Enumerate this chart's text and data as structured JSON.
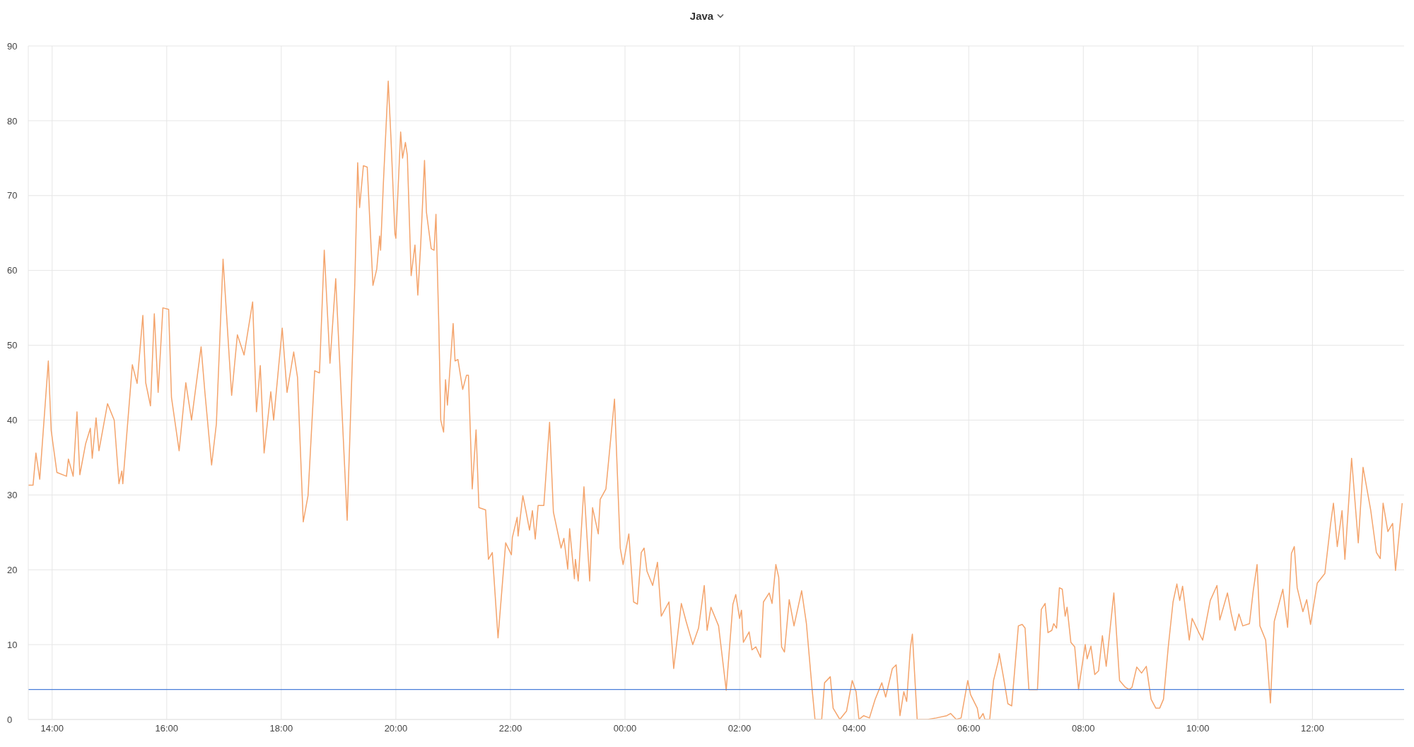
{
  "chart_data": {
    "type": "line",
    "title": "Java",
    "x": [
      "--01-01T13:35",
      "--01-01T13:40",
      "--01-01T13:43",
      "--01-01T13:47",
      "--01-01T13:56",
      "--01-01T13:59",
      "--01-01T14:05",
      "--01-01T14:15",
      "--01-01T14:17",
      "--01-01T14:22",
      "--01-01T14:26",
      "--01-01T14:29",
      "--01-01T14:35",
      "--01-01T14:40",
      "--01-01T14:42",
      "--01-01T14:46",
      "--01-01T14:49",
      "--01-01T14:58",
      "--01-01T15:05",
      "--01-01T15:10",
      "--01-01T15:13",
      "--01-01T15:14",
      "--01-01T15:24",
      "--01-01T15:29",
      "--01-01T15:35",
      "--01-01T15:38",
      "--01-01T15:43",
      "--01-01T15:47",
      "--01-01T15:51",
      "--01-01T15:56",
      "--01-01T16:02",
      "--01-01T16:05",
      "--01-01T16:13",
      "--01-01T16:20",
      "--01-01T16:26",
      "--01-01T16:36",
      "--01-01T16:40",
      "--01-01T16:47",
      "--01-01T16:52",
      "--01-01T16:59",
      "--01-01T17:08",
      "--01-01T17:14",
      "--01-01T17:21",
      "--01-01T17:30",
      "--01-01T17:34",
      "--01-01T17:38",
      "--01-01T17:42",
      "--01-01T17:49",
      "--01-01T17:52",
      "--01-01T18:01",
      "--01-01T18:06",
      "--01-01T18:13",
      "--01-01T18:17",
      "--01-01T18:23",
      "--01-01T18:28",
      "--01-01T18:35",
      "--01-01T18:40",
      "--01-01T18:45",
      "--01-01T18:51",
      "--01-01T18:57",
      "--01-01T19:09",
      "--01-01T19:17",
      "--01-01T19:20",
      "--01-01T19:22",
      "--01-01T19:26",
      "--01-01T19:30",
      "--01-01T19:36",
      "--01-01T19:40",
      "--01-01T19:43",
      "--01-01T19:44",
      "--01-01T19:47",
      "--01-01T19:52",
      "--01-01T19:55",
      "--01-01T19:59",
      "--01-01T20:00",
      "--01-01T20:05",
      "--01-01T20:07",
      "--01-01T20:10",
      "--01-01T20:12",
      "--01-01T20:16",
      "--01-01T20:20",
      "--01-01T20:23",
      "--01-01T20:26",
      "--01-01T20:30",
      "--01-01T20:32",
      "--01-01T20:37",
      "--01-01T20:40",
      "--01-01T20:42",
      "--01-01T20:45",
      "--01-01T20:47",
      "--01-01T20:50",
      "--01-01T20:52",
      "--01-01T20:54",
      "--01-01T21:00",
      "--01-01T21:02",
      "--01-01T21:05",
      "--01-01T21:10",
      "--01-01T21:14",
      "--01-01T21:16",
      "--01-01T21:20",
      "--01-01T21:24",
      "--01-01T21:27",
      "--01-01T21:34",
      "--01-01T21:37",
      "--01-01T21:41",
      "--01-01T21:47",
      "--01-01T21:55",
      "--01-01T22:01",
      "--01-01T22:02",
      "--01-01T22:07",
      "--01-01T22:08",
      "--01-01T22:13",
      "--01-01T22:16",
      "--01-01T22:20",
      "--01-01T22:23",
      "--01-01T22:26",
      "--01-01T22:29",
      "--01-01T22:35",
      "--01-01T22:41",
      "--01-01T22:45",
      "--01-01T22:53",
      "--01-01T22:56",
      "--01-01T23:00",
      "--01-01T23:02",
      "--01-01T23:07",
      "--01-01T23:08",
      "--01-01T23:11",
      "--01-01T23:17",
      "--01-01T23:23",
      "--01-01T23:26",
      "--01-01T23:32",
      "--01-01T23:34",
      "--01-01T23:40",
      "--01-01T23:49",
      "--01-01T23:55",
      "--01-01T23:58",
      "--01-02T00:04",
      "--01-02T00:09",
      "--01-02T00:13",
      "--01-02T00:17",
      "--01-02T00:20",
      "--01-02T00:23",
      "--01-02T00:29",
      "--01-02T00:34",
      "--01-02T00:38",
      "--01-02T00:46",
      "--01-02T00:51",
      "--01-02T00:59",
      "--01-02T01:04",
      "--01-02T01:11",
      "--01-02T01:17",
      "--01-02T01:23",
      "--01-02T01:26",
      "--01-02T01:30",
      "--01-02T01:38",
      "--01-02T01:46",
      "--01-02T01:53",
      "--01-02T01:56",
      "--01-02T02:00",
      "--01-02T02:02",
      "--01-02T02:04",
      "--01-02T02:10",
      "--01-02T02:13",
      "--01-02T02:17",
      "--01-02T02:22",
      "--01-02T02:25",
      "--01-02T02:31",
      "--01-02T02:34",
      "--01-02T02:38",
      "--01-02T02:41",
      "--01-02T02:44",
      "--01-02T02:47",
      "--01-02T02:52",
      "--01-02T02:57",
      "--01-02T03:05",
      "--01-02T03:10",
      "--01-02T03:16",
      "--01-02T03:19",
      "--01-02T03:26",
      "--01-02T03:29",
      "--01-02T03:35",
      "--01-02T03:38",
      "--01-02T03:45",
      "--01-02T03:50",
      "--01-02T03:52",
      "--01-02T03:58",
      "--01-02T04:02",
      "--01-02T04:05",
      "--01-02T04:10",
      "--01-02T04:16",
      "--01-02T04:22",
      "--01-02T04:29",
      "--01-02T04:33",
      "--01-02T04:40",
      "--01-02T04:44",
      "--01-02T04:48",
      "--01-02T04:52",
      "--01-02T04:55",
      "--01-02T04:59",
      "--01-02T05:01",
      "--01-02T05:06",
      "--01-02T05:17",
      "--01-02T05:26",
      "--01-02T05:37",
      "--01-02T05:41",
      "--01-02T05:47",
      "--01-02T05:52",
      "--01-02T05:59",
      "--01-02T06:02",
      "--01-02T06:09",
      "--01-02T06:11",
      "--01-02T06:15",
      "--01-02T06:17",
      "--01-02T06:22",
      "--01-02T06:26",
      "--01-02T06:31",
      "--01-02T06:32",
      "--01-02T06:37",
      "--01-02T06:41",
      "--01-02T06:45",
      "--01-02T06:52",
      "--01-02T06:56",
      "--01-02T06:59",
      "--01-02T07:03",
      "--01-02T07:12",
      "--01-02T07:16",
      "--01-02T07:20",
      "--01-02T07:23",
      "--01-02T07:27",
      "--01-02T07:29",
      "--01-02T07:32",
      "--01-02T07:35",
      "--01-02T07:38",
      "--01-02T07:41",
      "--01-02T07:43",
      "--01-02T07:47",
      "--01-02T07:51",
      "--01-02T07:55",
      "--01-02T08:02",
      "--01-02T08:04",
      "--01-02T08:08",
      "--01-02T08:12",
      "--01-02T08:16",
      "--01-02T08:20",
      "--01-02T08:24",
      "--01-02T08:32",
      "--01-02T08:38",
      "--01-02T08:44",
      "--01-02T08:48",
      "--01-02T08:51",
      "--01-02T08:56",
      "--01-02T09:01",
      "--01-02T09:06",
      "--01-02T09:11",
      "--01-02T09:16",
      "--01-02T09:20",
      "--01-02T09:24",
      "--01-02T09:29",
      "--01-02T09:34",
      "--01-02T09:38",
      "--01-02T09:41",
      "--01-02T09:44",
      "--01-02T09:51",
      "--01-02T09:54",
      "--01-02T10:01",
      "--01-02T10:05",
      "--01-02T10:13",
      "--01-02T10:20",
      "--01-02T10:23",
      "--01-02T10:31",
      "--01-02T10:35",
      "--01-02T10:39",
      "--01-02T10:43",
      "--01-02T10:47",
      "--01-02T10:54",
      "--01-02T10:58",
      "--01-02T11:02",
      "--01-02T11:05",
      "--01-02T11:11",
      "--01-02T11:16",
      "--01-02T11:20",
      "--01-02T11:29",
      "--01-02T11:34",
      "--01-02T11:38",
      "--01-02T11:41",
      "--01-02T11:44",
      "--01-02T11:50",
      "--01-02T11:54",
      "--01-02T11:58",
      "--01-02T12:05",
      "--01-02T12:13",
      "--01-02T12:19",
      "--01-02T12:22",
      "--01-02T12:26",
      "--01-02T12:31",
      "--01-02T12:34",
      "--01-02T12:41",
      "--01-02T12:48",
      "--01-02T12:53",
      "--01-02T13:01",
      "--01-02T13:07",
      "--01-02T13:11",
      "--01-02T13:14",
      "--01-02T13:19",
      "--01-02T13:24",
      "--01-02T13:27",
      "--01-02T13:34"
    ],
    "series": [
      {
        "color": "#f4a46c",
        "values": [
          31.3,
          31.3,
          35.6,
          32.1,
          47.9,
          38.6,
          33.0,
          32.5,
          34.8,
          32.5,
          41.1,
          32.7,
          36.8,
          38.9,
          34.9,
          40.3,
          35.9,
          42.2,
          40.0,
          31.5,
          33.2,
          31.5,
          47.4,
          44.9,
          54.0,
          45.0,
          41.9,
          54.2,
          43.7,
          55.0,
          54.8,
          43.0,
          35.9,
          45.0,
          40.0,
          49.8,
          43.7,
          34.0,
          39.5,
          61.5,
          43.3,
          51.4,
          48.7,
          55.8,
          41.1,
          47.3,
          35.6,
          43.8,
          40.0,
          52.3,
          43.7,
          49.1,
          45.7,
          26.4,
          29.9,
          46.6,
          46.3,
          62.7,
          47.6,
          58.9,
          26.6,
          58.3,
          74.4,
          68.4,
          74.0,
          73.8,
          58.0,
          60.2,
          64.6,
          62.7,
          71.9,
          85.3,
          77.3,
          64.9,
          64.3,
          78.5,
          75.0,
          77.1,
          75.4,
          59.3,
          63.4,
          56.7,
          63.4,
          74.7,
          67.8,
          62.9,
          62.7,
          67.5,
          52.6,
          40.0,
          38.4,
          45.4,
          42.0,
          52.9,
          47.9,
          48.1,
          44.1,
          46.0,
          46.0,
          30.8,
          38.7,
          28.3,
          28.0,
          21.4,
          22.3,
          10.9,
          23.6,
          22.0,
          24.3,
          27.0,
          24.5,
          29.9,
          28.0,
          25.3,
          27.9,
          24.1,
          28.6,
          28.6,
          39.7,
          27.7,
          22.9,
          24.2,
          20.1,
          25.5,
          18.8,
          21.4,
          18.5,
          31.1,
          18.5,
          28.3,
          24.8,
          29.4,
          30.8,
          42.8,
          22.9,
          20.7,
          24.8,
          15.7,
          15.4,
          22.3,
          22.9,
          19.8,
          17.9,
          21.0,
          13.8,
          15.7,
          6.8,
          15.5,
          13.1,
          10.0,
          12.2,
          17.9,
          11.9,
          15.0,
          12.5,
          3.9,
          15.4,
          16.7,
          13.5,
          14.6,
          10.3,
          11.7,
          9.3,
          9.7,
          8.3,
          15.7,
          16.9,
          15.5,
          20.7,
          19.0,
          9.7,
          9.0,
          16.0,
          12.5,
          17.2,
          12.8,
          4.0,
          0,
          0,
          4.9,
          5.7,
          1.5,
          0,
          0.8,
          1.1,
          5.2,
          3.7,
          0,
          0.5,
          0.2,
          2.7,
          4.9,
          3.0,
          6.8,
          7.3,
          0.5,
          3.7,
          2.4,
          9.7,
          11.4,
          0,
          0,
          0.2,
          0.5,
          0.8,
          0,
          0.2,
          5.2,
          3.3,
          1.5,
          0,
          0.8,
          0,
          0,
          5.2,
          7.8,
          8.8,
          5.2,
          2.1,
          1.8,
          12.5,
          12.7,
          12.2,
          4.0,
          4.0,
          14.7,
          15.5,
          11.6,
          11.9,
          12.8,
          12.2,
          17.6,
          17.4,
          13.8,
          15.0,
          10.3,
          9.7,
          4.0,
          10.0,
          8.1,
          9.8,
          6.0,
          6.5,
          11.2,
          7.1,
          16.9,
          5.2,
          4.3,
          4.0,
          4.3,
          7.0,
          6.2,
          7.1,
          2.7,
          1.5,
          1.5,
          2.7,
          9.7,
          15.7,
          18.1,
          15.9,
          17.8,
          10.6,
          13.5,
          11.6,
          10.6,
          15.9,
          17.9,
          13.3,
          16.9,
          14.1,
          11.9,
          14.1,
          12.5,
          12.8,
          17.2,
          20.7,
          12.5,
          10.6,
          2.2,
          13.1,
          17.4,
          12.3,
          22.2,
          23.1,
          17.6,
          14.4,
          16.0,
          12.7,
          18.2,
          19.5,
          26.1,
          28.9,
          23.1,
          27.9,
          21.4,
          34.9,
          23.6,
          33.7,
          28.0,
          22.3,
          21.5,
          28.9,
          25.1,
          26.2,
          19.9,
          28.9
        ]
      }
    ],
    "xlim": [
      "--01-01T13:35",
      "--01-02T13:36"
    ],
    "xticks": [
      {
        "value": "--01-01T14:00",
        "label": "14:00"
      },
      {
        "value": "--01-01T16:00",
        "label": "16:00"
      },
      {
        "value": "--01-01T18:00",
        "label": "18:00"
      },
      {
        "value": "--01-01T20:00",
        "label": "20:00"
      },
      {
        "value": "--01-01T22:00",
        "label": "22:00"
      },
      {
        "value": "--01-02T00:00",
        "label": "00:00"
      },
      {
        "value": "--01-02T02:00",
        "label": "02:00"
      },
      {
        "value": "--01-02T04:00",
        "label": "04:00"
      },
      {
        "value": "--01-02T06:00",
        "label": "06:00"
      },
      {
        "value": "--01-02T08:00",
        "label": "08:00"
      },
      {
        "value": "--01-02T10:00",
        "label": "10:00"
      },
      {
        "value": "--01-02T12:00",
        "label": "12:00"
      }
    ],
    "ylim": [
      0,
      90
    ],
    "yticks": [
      0,
      10,
      20,
      30,
      40,
      50,
      60,
      70,
      80,
      90
    ],
    "ref_lines": [
      {
        "axis": "y",
        "value": 4,
        "color": "#4a7fd9"
      }
    ],
    "grid": true,
    "marker": "none",
    "line_style": "solid"
  }
}
